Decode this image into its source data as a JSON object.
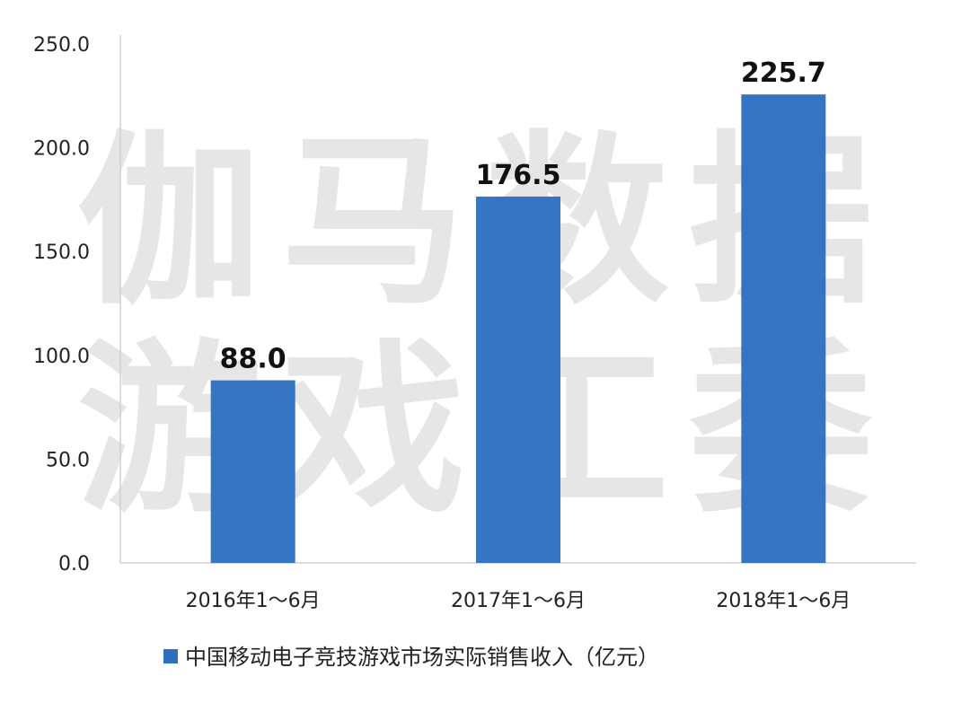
{
  "watermark": {
    "line1": "伽马数据",
    "line2": "游戏工委"
  },
  "chart_data": {
    "type": "bar",
    "categories": [
      "2016年1～6月",
      "2017年1～6月",
      "2018年1～6月"
    ],
    "series": [
      {
        "name": "中国移动电子竞技游戏市场实际销售收入（亿元）",
        "values": [
          88.0,
          176.5,
          225.7
        ],
        "color": "#2e6fbf"
      }
    ],
    "data_labels": [
      "88.0",
      "176.5",
      "225.7"
    ],
    "y_ticks": [
      "0.0",
      "50.0",
      "100.0",
      "150.0",
      "200.0",
      "250.0"
    ],
    "ylim": [
      0,
      250
    ],
    "grid": false,
    "legend_position": "bottom"
  }
}
